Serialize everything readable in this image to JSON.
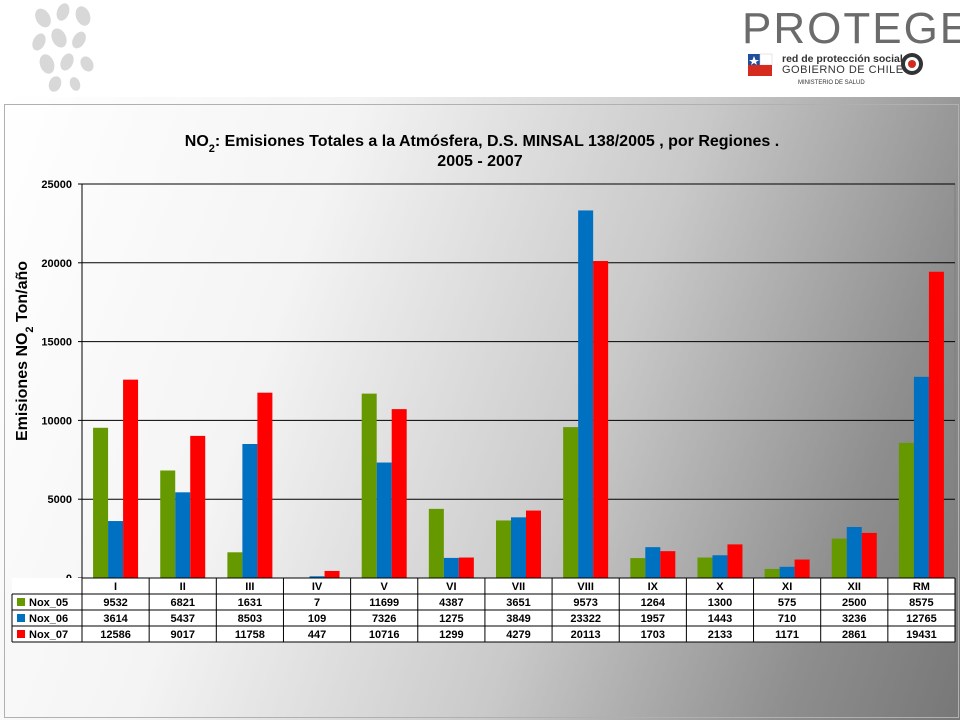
{
  "header": {
    "logo": "PROTEGE",
    "line1": "red de protección social",
    "line2": "GOBIERNO DE CHILE",
    "line3": "MINISTERIO DE SALUD"
  },
  "chart_data": {
    "type": "bar",
    "title_part1": "NO",
    "title_sub": "2",
    "title_part2": ": Emisiones Totales a la Atmósfera,  D.S. MINSAL 138/2005 , por Regiones .",
    "title_line2": "2005 - 2007",
    "ylabel_part1": "Emisiones NO",
    "ylabel_sub": "2",
    "ylabel_part2": " Ton/año",
    "ylim": [
      0,
      25000
    ],
    "yticks": [
      "0",
      "5000",
      "10000",
      "15000",
      "20000",
      "25000"
    ],
    "grid": true,
    "categories": [
      "I",
      "II",
      "III",
      "IV",
      "V",
      "VI",
      "VII",
      "VIII",
      "IX",
      "X",
      "XI",
      "XII",
      "RM"
    ],
    "series": [
      {
        "name": "Nox_05",
        "color": "#669900",
        "values": [
          9532,
          6821,
          1631,
          7,
          11699,
          4387,
          3651,
          9573,
          1264,
          1300,
          575,
          2500,
          8575
        ]
      },
      {
        "name": "Nox_06",
        "color": "#0070c0",
        "values": [
          3614,
          5437,
          8503,
          109,
          7326,
          1275,
          3849,
          23322,
          1957,
          1443,
          710,
          3236,
          12765
        ]
      },
      {
        "name": "Nox_07",
        "color": "#ff0000",
        "values": [
          12586,
          9017,
          11758,
          447,
          10716,
          1299,
          4279,
          20113,
          1703,
          2133,
          1171,
          2861,
          19431
        ]
      }
    ]
  }
}
